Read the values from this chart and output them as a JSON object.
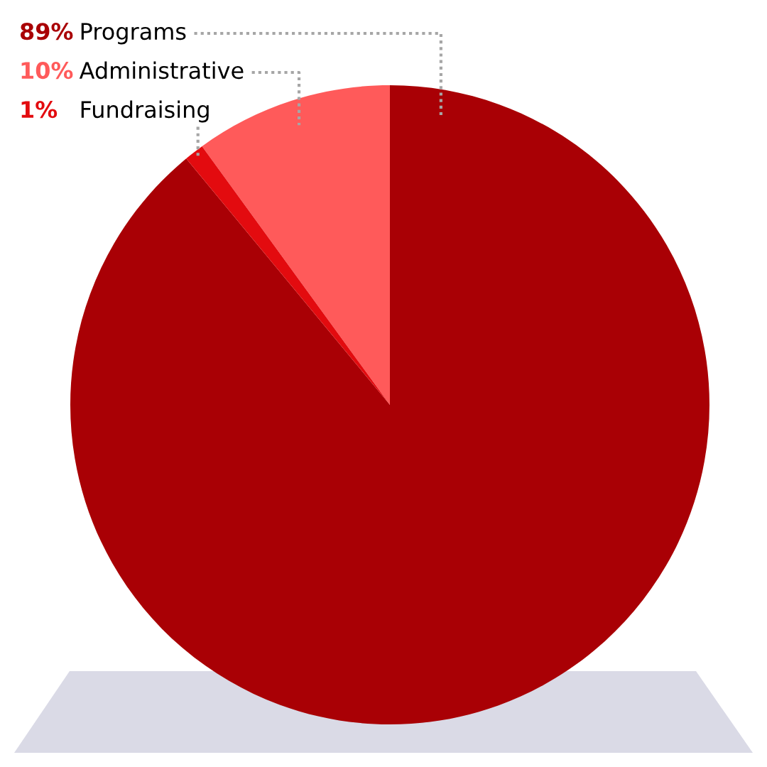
{
  "chart_data": {
    "type": "pie",
    "categories": [
      "Programs",
      "Administrative",
      "Fundraising"
    ],
    "values": [
      89,
      10,
      1
    ],
    "colors": [
      "#a90005",
      "#ff5a5a",
      "#e30b0f"
    ],
    "value_labels": [
      "89%",
      "10%",
      "1%"
    ]
  }
}
